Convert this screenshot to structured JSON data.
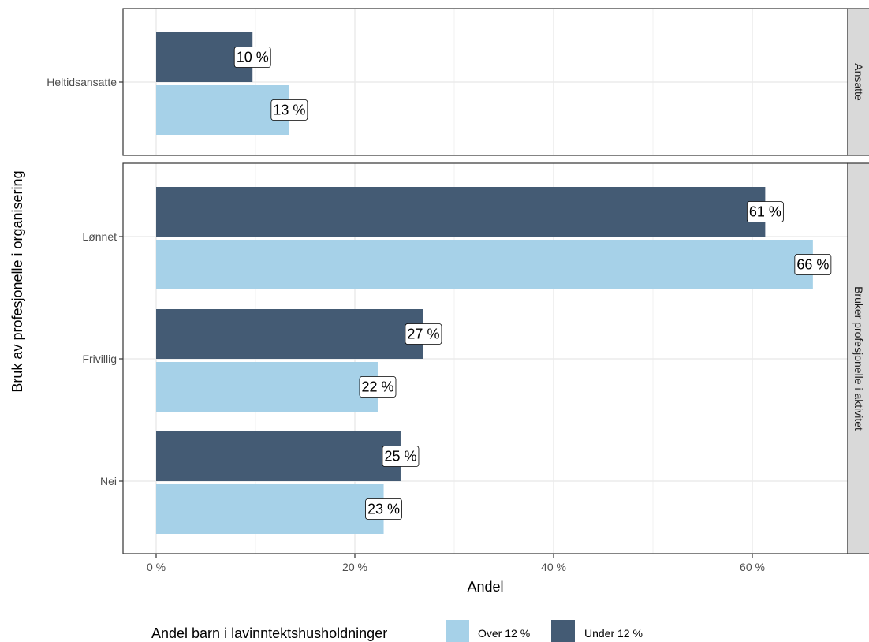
{
  "chart_data": {
    "type": "bar",
    "orientation": "horizontal",
    "xlabel": "Andel",
    "ylabel": "Bruk av profesjonelle i organisering",
    "xlim": [
      0,
      70
    ],
    "x_ticks": [
      0,
      20,
      40,
      60
    ],
    "x_tick_labels": [
      "0 %",
      "20 %",
      "40 %",
      "60 %"
    ],
    "grid": true,
    "legend": {
      "title": "Andel barn i lavinntektshusholdninger",
      "position": "bottom",
      "entries": [
        {
          "name": "Over 12  %",
          "color": "#a6d1e8"
        },
        {
          "name": "Under 12  %",
          "color": "#445b74"
        }
      ]
    },
    "facets": [
      {
        "strip": "Ansatte",
        "categories": [
          "Heltidsansatte"
        ],
        "series": [
          {
            "name": "Under 12  %",
            "values": [
              9.7
            ],
            "labels": [
              "10 %"
            ]
          },
          {
            "name": "Over 12  %",
            "values": [
              13.4
            ],
            "labels": [
              "13 %"
            ]
          }
        ]
      },
      {
        "strip": "Bruker profesjonelle i aktivitet",
        "categories": [
          "Lønnet",
          "Frivillig",
          "Nei"
        ],
        "series": [
          {
            "name": "Under 12  %",
            "values": [
              61.3,
              26.9,
              24.6
            ],
            "labels": [
              "61 %",
              "27 %",
              "25 %"
            ]
          },
          {
            "name": "Over 12  %",
            "values": [
              66.1,
              22.3,
              22.9
            ],
            "labels": [
              "66 %",
              "22 %",
              "23 %"
            ]
          }
        ]
      }
    ]
  }
}
